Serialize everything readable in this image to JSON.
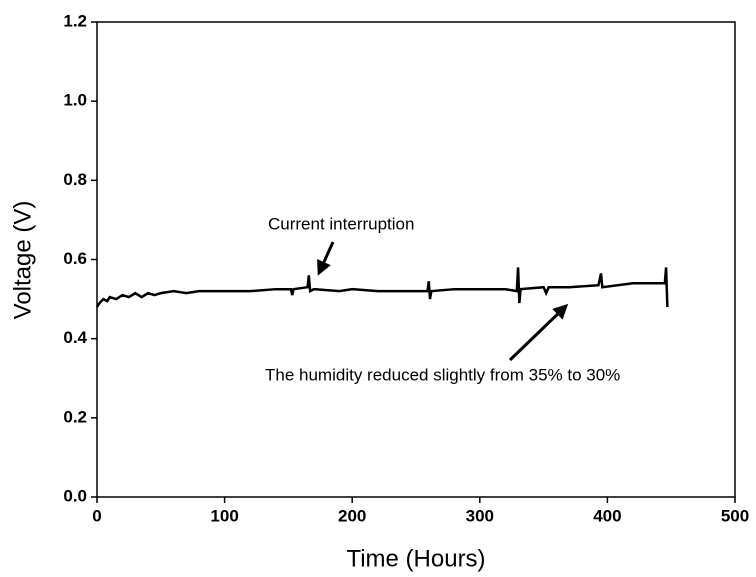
{
  "chart_data": {
    "type": "line",
    "x_label": "Time (Hours)",
    "y_label": "Voltage (V)",
    "xlim": [
      0,
      500
    ],
    "ylim": [
      0,
      1.2
    ],
    "xticks": [
      0,
      100,
      200,
      300,
      400,
      500
    ],
    "yticks": [
      {
        "value": 0,
        "label": "0.0"
      },
      0.2,
      0.4,
      0.6,
      0.8,
      {
        "value": 1,
        "label": "1.0"
      },
      1.2
    ],
    "annotations": [
      "Current interruption",
      "The humidity reduced slightly from 35% to 30%"
    ],
    "series": [
      {
        "color": "#000000",
        "x": [
          0,
          2,
          5,
          8,
          10,
          15,
          20,
          25,
          30,
          35,
          40,
          45,
          50,
          60,
          70,
          80,
          100,
          120,
          140,
          152,
          153,
          154,
          165,
          166,
          167,
          170,
          190,
          200,
          220,
          240,
          259,
          260,
          261,
          262,
          280,
          300,
          320,
          329,
          330,
          331,
          332,
          350,
          352,
          354,
          370,
          393,
          395,
          396,
          420,
          445,
          446,
          447
        ],
        "values": [
          0.48,
          0.49,
          0.5,
          0.495,
          0.505,
          0.5,
          0.51,
          0.505,
          0.515,
          0.505,
          0.515,
          0.51,
          0.515,
          0.52,
          0.515,
          0.52,
          0.52,
          0.52,
          0.525,
          0.525,
          0.51,
          0.525,
          0.53,
          0.56,
          0.52,
          0.525,
          0.52,
          0.525,
          0.52,
          0.52,
          0.52,
          0.545,
          0.5,
          0.52,
          0.525,
          0.525,
          0.525,
          0.52,
          0.58,
          0.49,
          0.525,
          0.53,
          0.515,
          0.53,
          0.53,
          0.535,
          0.565,
          0.53,
          0.54,
          0.54,
          0.58,
          0.48
        ]
      }
    ]
  }
}
